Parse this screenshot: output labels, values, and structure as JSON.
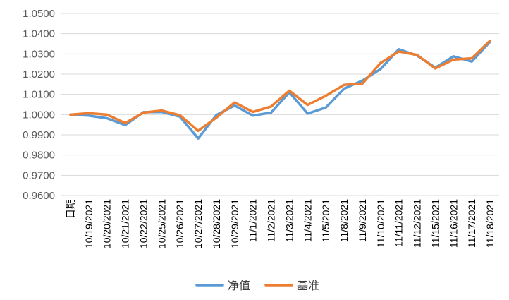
{
  "chart_data": {
    "type": "line",
    "title": "",
    "xlabel": "",
    "ylabel": "",
    "ylim": [
      0.96,
      1.05
    ],
    "y_ticks": [
      0.96,
      0.97,
      0.98,
      0.99,
      1.0,
      1.01,
      1.02,
      1.03,
      1.04,
      1.05
    ],
    "y_tick_labels": [
      "0.9600",
      "0.9700",
      "0.9800",
      "0.9900",
      "1.0000",
      "1.0100",
      "1.0200",
      "1.0300",
      "1.0400",
      "1.0500"
    ],
    "grid": true,
    "legend_position": "bottom",
    "categories": [
      "日期",
      "10/19/2021",
      "10/20/2021",
      "10/21/2021",
      "10/22/2021",
      "10/25/2021",
      "10/26/2021",
      "10/27/2021",
      "10/28/2021",
      "10/29/2021",
      "11/1/2021",
      "11/2/2021",
      "11/3/2021",
      "11/4/2021",
      "11/5/2021",
      "11/8/2021",
      "11/9/2021",
      "11/10/2021",
      "11/11/2021",
      "11/12/2021",
      "11/15/2021",
      "11/16/2021",
      "11/17/2021",
      "11/18/2021"
    ],
    "series": [
      {
        "name": "净值",
        "color": "#5b9bd5",
        "values": [
          1.0,
          0.9995,
          0.9982,
          0.9948,
          1.0012,
          1.0013,
          0.999,
          0.9882,
          0.9998,
          1.0045,
          0.9995,
          1.001,
          1.011,
          1.0005,
          1.0035,
          1.0128,
          1.0168,
          1.0225,
          1.0323,
          1.0292,
          1.0232,
          1.0288,
          1.0262,
          1.036
        ]
      },
      {
        "name": "基准",
        "color": "#ed7d31",
        "values": [
          1.0,
          1.0007,
          1.0,
          0.9958,
          1.001,
          1.002,
          0.9997,
          0.992,
          0.9985,
          1.006,
          1.0013,
          1.004,
          1.0118,
          1.0048,
          1.0093,
          1.0147,
          1.0153,
          1.0255,
          1.0312,
          1.0295,
          1.0228,
          1.0272,
          1.0278,
          1.0365
        ]
      }
    ]
  }
}
